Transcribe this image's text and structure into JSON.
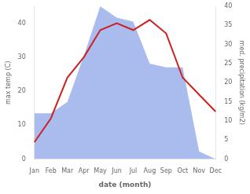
{
  "chart_data": {
    "type": "line",
    "categories": [
      "Jan",
      "Feb",
      "Mar",
      "Apr",
      "May",
      "Jun",
      "Jul",
      "Aug",
      "Sep",
      "Oct",
      "Nov",
      "Dec"
    ],
    "xlabel": "date (month)",
    "ylabel": "max temp (C)",
    "y2label": "med. precipitation (kg/m2)",
    "series": [
      {
        "type": "area",
        "color": "#aabbee",
        "axis": "y2",
        "values": [
          12,
          12,
          15,
          27,
          40,
          37,
          36,
          25,
          24,
          24,
          2,
          0
        ]
      },
      {
        "type": "line",
        "color": "#cc2222",
        "values": [
          5,
          12,
          24,
          30,
          38,
          40,
          38,
          41,
          37,
          24,
          19,
          14
        ]
      }
    ],
    "ylim": [
      0,
      45
    ],
    "yticks": [
      0,
      10,
      20,
      30,
      40
    ],
    "y2lim": [
      0,
      40
    ],
    "y2ticks": [
      0,
      5,
      10,
      15,
      20,
      25,
      30,
      35,
      40
    ],
    "grid": false
  }
}
